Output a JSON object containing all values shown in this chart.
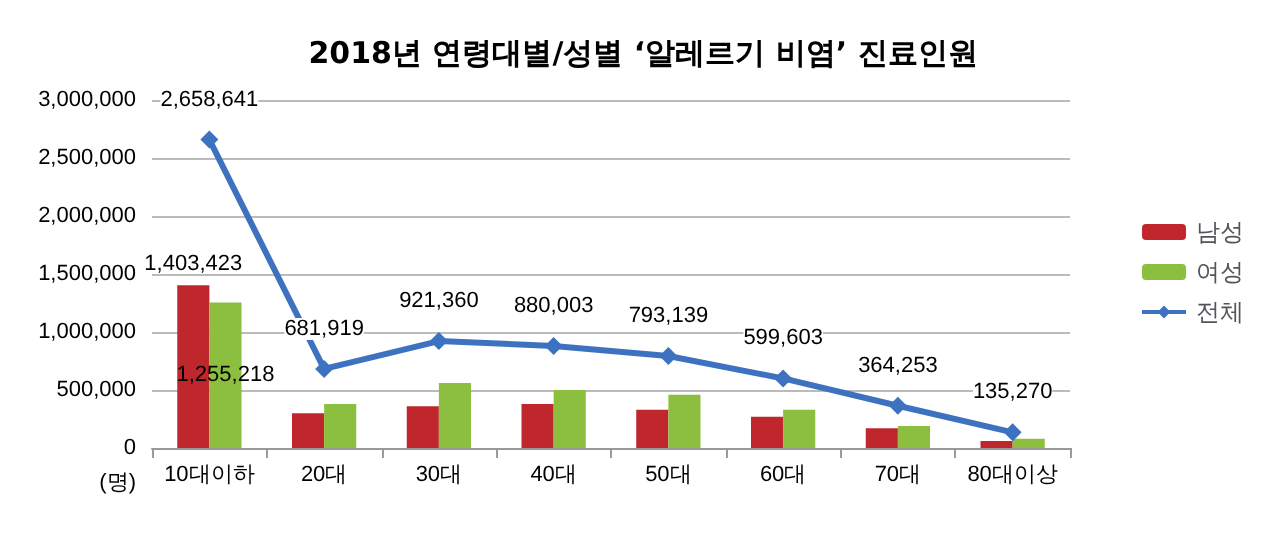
{
  "chart_data": {
    "type": "bar",
    "title": "2018년 연령대별/성별 ‘알레르기 비염’ 진료인원",
    "ylabel": "(명)",
    "categories": [
      "10대이하",
      "20대",
      "30대",
      "40대",
      "50대",
      "60대",
      "70대",
      "80대이상"
    ],
    "series": [
      {
        "name": "남성",
        "color": "#c0272d",
        "values": [
          1403423,
          300000,
          360000,
          380000,
          330000,
          270000,
          170000,
          60000
        ],
        "value_labels": [
          "1,403,423",
          null,
          null,
          null,
          null,
          null,
          null,
          null
        ]
      },
      {
        "name": "여성",
        "color": "#8cbf3f",
        "values": [
          1255218,
          380000,
          560000,
          500000,
          460000,
          330000,
          190000,
          80000
        ],
        "value_labels": [
          "1,255,218",
          null,
          null,
          null,
          null,
          null,
          null,
          null
        ]
      },
      {
        "name": "전체",
        "type": "line",
        "color": "#3d72c0",
        "marker": "diamond",
        "values": [
          2658641,
          681919,
          921360,
          880003,
          793139,
          599603,
          364253,
          135270
        ],
        "value_labels": [
          "2,658,641",
          "681,919",
          "921,360",
          "880,003",
          "793,139",
          "599,603",
          "364,253",
          "135,270"
        ]
      }
    ],
    "ylim": [
      0,
      3000000
    ],
    "yticks": [
      {
        "value": 0,
        "label": "0"
      },
      {
        "value": 500000,
        "label": "500,000"
      },
      {
        "value": 1000000,
        "label": "1,000,000"
      },
      {
        "value": 1500000,
        "label": "1,500,000"
      },
      {
        "value": 2000000,
        "label": "2,000,000"
      },
      {
        "value": 2500000,
        "label": "2,500,000"
      },
      {
        "value": 3000000,
        "label": "3,000,000"
      }
    ],
    "grid": "y",
    "legend": "right"
  }
}
